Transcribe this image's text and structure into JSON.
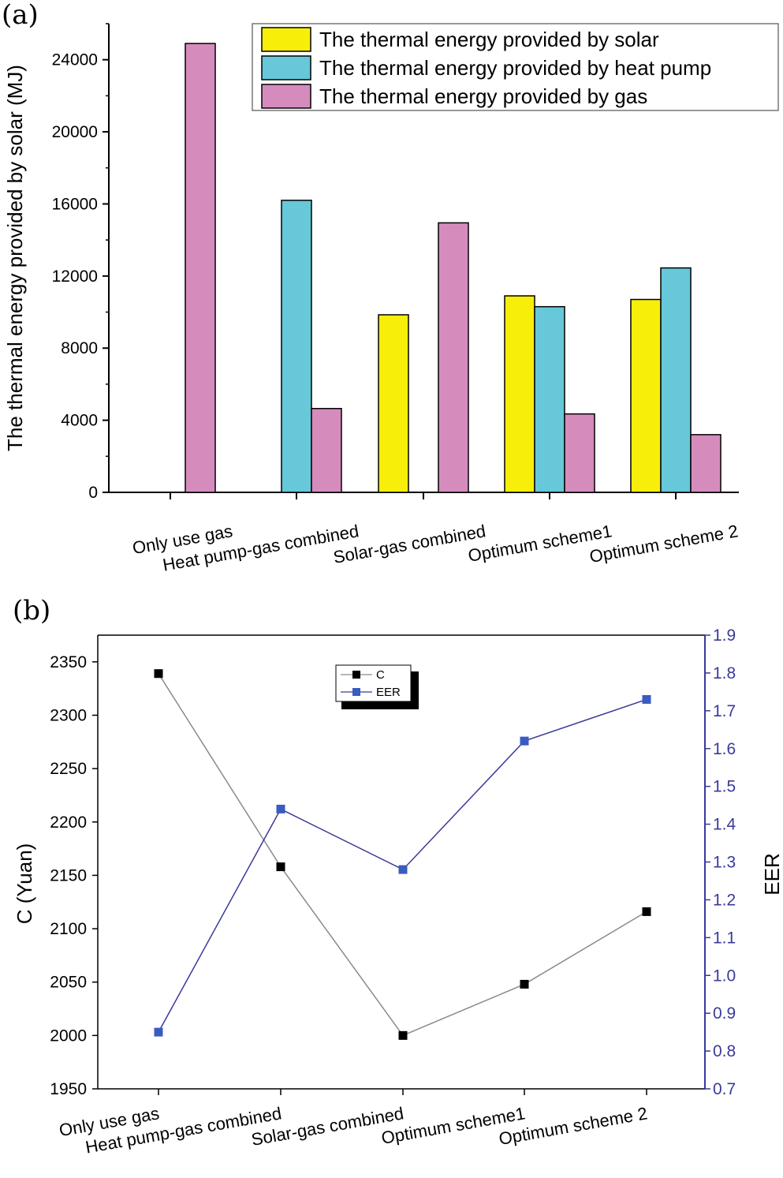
{
  "chart_data": [
    {
      "panel": "(a)",
      "type": "bar",
      "ylabel": "The thermal energy provided by solar (MJ)",
      "ylim": [
        0,
        26000
      ],
      "yticks": [
        "0",
        "4000",
        "8000",
        "12000",
        "16000",
        "20000",
        "24000"
      ],
      "categories": [
        "Only use gas",
        "Heat pump-gas combined",
        "Solar-gas combined",
        "Optimum scheme1",
        "Optimum scheme 2"
      ],
      "series": [
        {
          "name": "The thermal energy provided by solar",
          "color": "#f7ee0a",
          "values": [
            0,
            0,
            9850,
            10900,
            10700
          ]
        },
        {
          "name": "The thermal energy provided by heat pump",
          "color": "#66c8d8",
          "values": [
            0,
            16200,
            0,
            10300,
            12450
          ]
        },
        {
          "name": "The thermal energy provided by gas",
          "color": "#d58cbd",
          "values": [
            24900,
            4650,
            14950,
            4350,
            3200
          ]
        }
      ]
    },
    {
      "panel": "(b)",
      "type": "line",
      "ylabel": "C (Yuan)",
      "y2label": "EER",
      "ylim": [
        1950,
        2375
      ],
      "yticks": [
        "1950",
        "2000",
        "2050",
        "2100",
        "2150",
        "2200",
        "2250",
        "2300",
        "2350"
      ],
      "y2lim": [
        0.7,
        1.9
      ],
      "y2ticks": [
        "0.7",
        "0.8",
        "0.9",
        "1.0",
        "1.1",
        "1.2",
        "1.3",
        "1.4",
        "1.5",
        "1.6",
        "1.7",
        "1.8",
        "1.9"
      ],
      "categories": [
        "Only use gas",
        "Heat pump-gas combined",
        "Solar-gas combined",
        "Optimum scheme1",
        "Optimum scheme 2"
      ],
      "series": [
        {
          "name": "C",
          "axis": "left",
          "color": "#000000",
          "line_color": "#8a8a8a",
          "values": [
            2339,
            2158,
            2000,
            2048,
            2116
          ]
        },
        {
          "name": "EER",
          "axis": "right",
          "color": "#3a5bc0",
          "line_color": "#3a3a9a",
          "values": [
            0.85,
            1.44,
            1.28,
            1.62,
            1.73
          ]
        }
      ]
    }
  ]
}
